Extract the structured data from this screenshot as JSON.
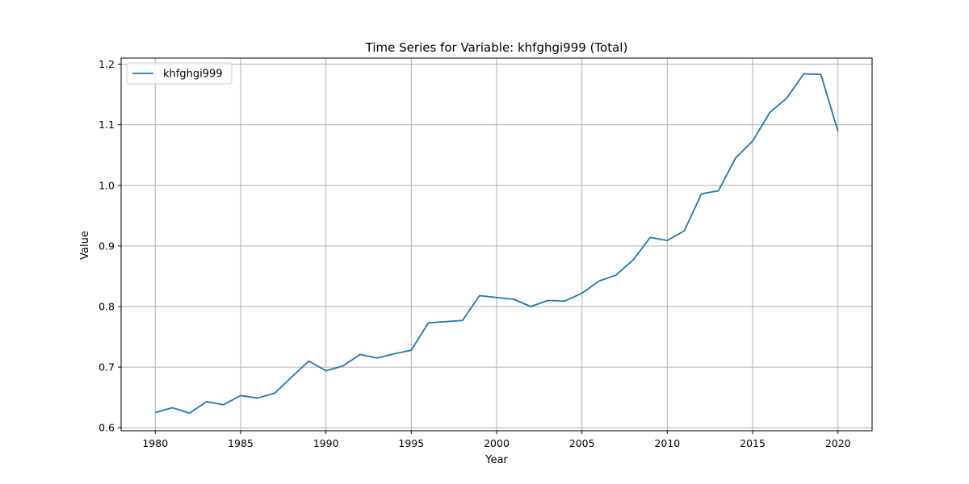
{
  "chart_data": {
    "type": "line",
    "title": "Time Series for Variable: khfghgi999 (Total)",
    "xlabel": "Year",
    "ylabel": "Value",
    "xlim": [
      1978,
      2022
    ],
    "ylim": [
      0.595,
      1.21
    ],
    "xticks": [
      1980,
      1985,
      1990,
      1995,
      2000,
      2005,
      2010,
      2015,
      2020
    ],
    "yticks": [
      0.6,
      0.7,
      0.8,
      0.9,
      1.0,
      1.1,
      1.2
    ],
    "ytick_labels": [
      "0.6",
      "0.7",
      "0.8",
      "0.9",
      "1.0",
      "1.1",
      "1.2"
    ],
    "grid": true,
    "legend_position": "top-left",
    "series": [
      {
        "name": "khfghgi999",
        "color": "#1f77b4",
        "x": [
          1980,
          1981,
          1982,
          1983,
          1984,
          1985,
          1986,
          1987,
          1988,
          1989,
          1990,
          1991,
          1992,
          1993,
          1994,
          1995,
          1996,
          1997,
          1998,
          1999,
          2000,
          2001,
          2002,
          2003,
          2004,
          2005,
          2006,
          2007,
          2008,
          2009,
          2010,
          2011,
          2012,
          2013,
          2014,
          2015,
          2016,
          2017,
          2018,
          2019,
          2020
        ],
        "y": [
          0.625,
          0.633,
          0.624,
          0.643,
          0.638,
          0.653,
          0.649,
          0.657,
          0.684,
          0.71,
          0.694,
          0.702,
          0.721,
          0.715,
          0.722,
          0.728,
          0.773,
          0.775,
          0.777,
          0.818,
          0.815,
          0.812,
          0.8,
          0.81,
          0.809,
          0.822,
          0.842,
          0.852,
          0.877,
          0.914,
          0.909,
          0.925,
          0.986,
          0.991,
          1.045,
          1.073,
          1.12,
          1.144,
          1.184,
          1.183,
          1.089
        ]
      }
    ]
  }
}
